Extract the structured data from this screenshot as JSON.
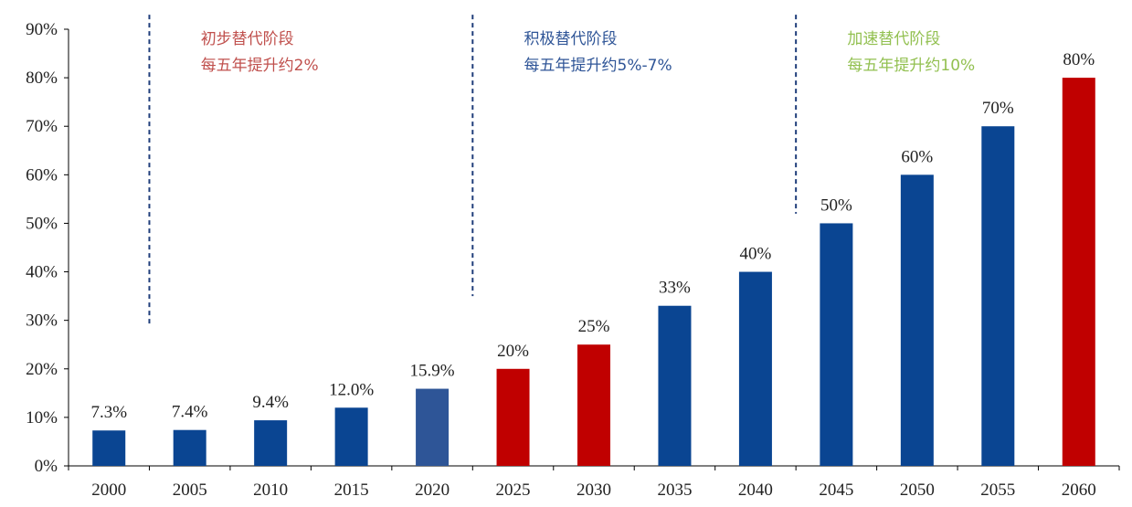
{
  "chart_data": {
    "type": "bar",
    "categories": [
      "2000",
      "2005",
      "2010",
      "2015",
      "2020",
      "2025",
      "2030",
      "2035",
      "2040",
      "2045",
      "2050",
      "2055",
      "2060"
    ],
    "values": [
      7.3,
      7.4,
      9.4,
      12.0,
      15.9,
      20,
      25,
      33,
      40,
      50,
      60,
      70,
      80
    ],
    "value_labels": [
      "7.3%",
      "7.4%",
      "9.4%",
      "12.0%",
      "15.9%",
      "20%",
      "25%",
      "33%",
      "40%",
      "50%",
      "60%",
      "70%",
      "80%"
    ],
    "bar_colors": [
      "#0a4592",
      "#0a4592",
      "#0a4592",
      "#0a4592",
      "#2e5597",
      "#c00000",
      "#c00000",
      "#0a4592",
      "#0a4592",
      "#0a4592",
      "#0a4592",
      "#0a4592",
      "#c00000"
    ],
    "ylim": [
      0,
      90
    ],
    "yticks": [
      0,
      10,
      20,
      30,
      40,
      50,
      60,
      70,
      80,
      90
    ],
    "ytick_labels": [
      "0%",
      "10%",
      "20%",
      "30%",
      "40%",
      "50%",
      "60%",
      "70%",
      "80%",
      "90%"
    ],
    "grid": false,
    "title": "",
    "xlabel": "",
    "ylabel": "",
    "phase_dividers": [
      {
        "after_category": "2000",
        "top_value": 93,
        "bottom_value": 29
      },
      {
        "after_category": "2020",
        "top_value": 93,
        "bottom_value": 35
      },
      {
        "after_category": "2040",
        "top_value": 93,
        "bottom_value": 52
      }
    ],
    "annotations": [
      {
        "line1": "初步替代阶段",
        "line2": "每五年提升约2%",
        "color": "#c0504d",
        "anchor_category": "2005"
      },
      {
        "line1": "积极替代阶段",
        "line2": "每五年提升约5%-7%",
        "color": "#2f5597",
        "anchor_category": "2025"
      },
      {
        "line1": "加速替代阶段",
        "line2": "每五年提升约10%",
        "color": "#92c050",
        "anchor_category": "2045"
      }
    ]
  }
}
